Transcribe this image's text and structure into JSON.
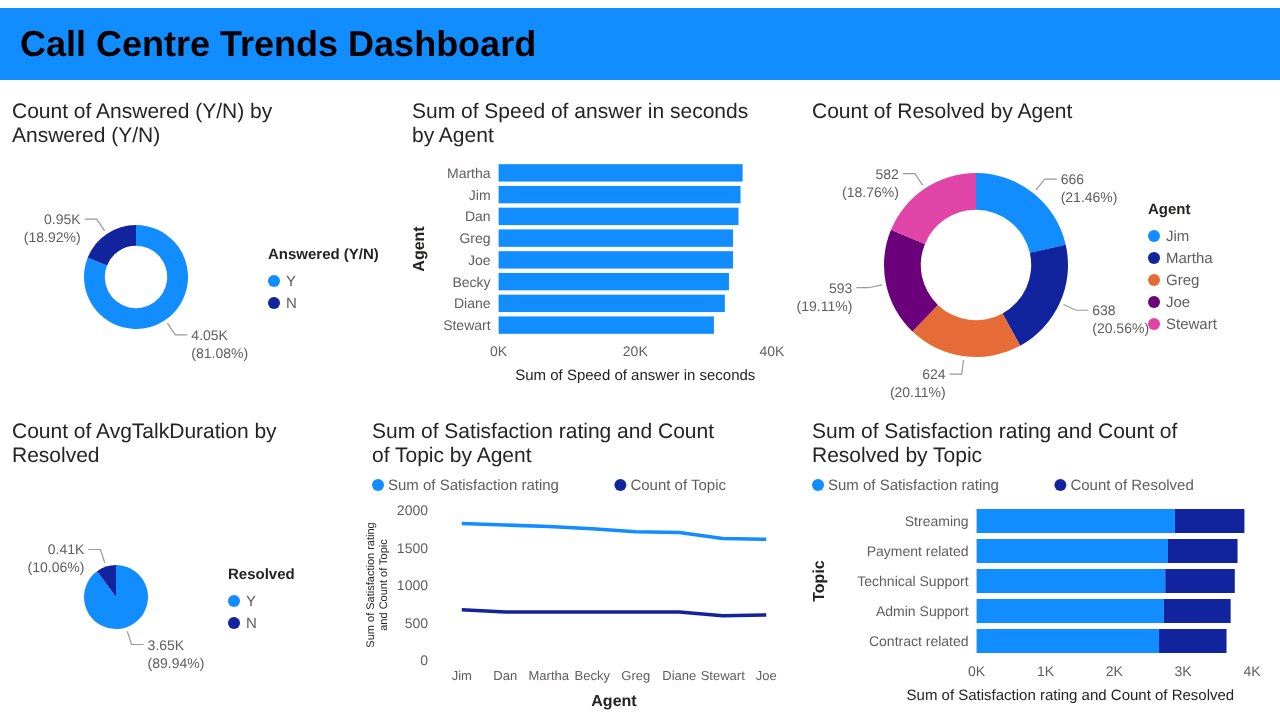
{
  "chart_data": [
    {
      "type": "other",
      "title": "Call Centre Trends Dashboard"
    },
    {
      "type": "donut",
      "title": "Count of Answered (Y/N) by Answered (Y/N)",
      "legend_title": "Answered (Y/N)",
      "legend": "right",
      "categories": [
        "Y",
        "N"
      ],
      "values": [
        4050,
        950
      ],
      "colors": [
        "#118dff",
        "#12239e"
      ],
      "value_labels": [
        "4.05K (81.08%)",
        "0.95K (18.92%)"
      ]
    },
    {
      "type": "bar",
      "orientation": "horizontal",
      "title": "Sum of Speed of answer in seconds by Agent",
      "xlabel": "Sum of Speed of answer in seconds",
      "ylabel": "Agent",
      "categories": [
        "Martha",
        "Jim",
        "Dan",
        "Greg",
        "Joe",
        "Becky",
        "Diane",
        "Stewart"
      ],
      "values": [
        35700,
        35400,
        35100,
        34300,
        34300,
        33700,
        33100,
        31500
      ],
      "color": "#118dff",
      "xlim": [
        0,
        40000
      ],
      "xticks": [
        {
          "value": 0,
          "label": "0K"
        },
        {
          "value": 20000,
          "label": "20K"
        },
        {
          "value": 40000,
          "label": "40K"
        }
      ]
    },
    {
      "type": "donut",
      "title": "Count of Resolved by Agent",
      "legend_title": "Agent",
      "legend": "right",
      "categories": [
        "Jim",
        "Martha",
        "Greg",
        "Joe",
        "Stewart"
      ],
      "values": [
        666,
        638,
        624,
        593,
        582
      ],
      "colors": [
        "#118dff",
        "#12239e",
        "#e66c37",
        "#6b007b",
        "#e044a7"
      ],
      "value_labels": [
        "666 (21.46%)",
        "638 (20.56%)",
        "624 (20.11%)",
        "593 (19.11%)",
        "582 (18.76%)"
      ]
    },
    {
      "type": "pie",
      "title": "Count of AvgTalkDuration by Resolved",
      "legend_title": "Resolved",
      "legend": "right",
      "categories": [
        "Y",
        "N"
      ],
      "values": [
        3650,
        410
      ],
      "colors": [
        "#118dff",
        "#12239e"
      ],
      "value_labels": [
        "3.65K (89.94%)",
        "0.41K (10.06%)"
      ]
    },
    {
      "type": "line",
      "title": "Sum of Satisfaction rating and Count of Topic by Agent",
      "xlabel": "Agent",
      "ylabel": "Sum of Satisfaction rating and Count of Topic",
      "legend": "top left",
      "categories": [
        "Jim",
        "Dan",
        "Martha",
        "Becky",
        "Greg",
        "Diane",
        "Stewart",
        "Joe"
      ],
      "ylim": [
        0,
        2000
      ],
      "yticks": [
        0,
        500,
        1000,
        1500,
        2000
      ],
      "series": [
        {
          "name": "Sum of Satisfaction rating",
          "color": "#118dff",
          "values": [
            1820,
            1800,
            1780,
            1750,
            1710,
            1700,
            1620,
            1610
          ]
        },
        {
          "name": "Count of Topic",
          "color": "#12239e",
          "values": [
            670,
            640,
            640,
            640,
            640,
            640,
            590,
            600
          ]
        }
      ]
    },
    {
      "type": "bar",
      "orientation": "horizontal",
      "stacked": true,
      "title": "Sum of Satisfaction rating and Count of Resolved by Topic",
      "xlabel": "Sum of Satisfaction rating and Count of Resolved",
      "ylabel": "Topic",
      "legend": "top left",
      "categories": [
        "Streaming",
        "Payment related",
        "Technical Support",
        "Admin Support",
        "Contract related"
      ],
      "xlim": [
        0,
        4000
      ],
      "xticks": [
        {
          "value": 0,
          "label": "0K"
        },
        {
          "value": 1000,
          "label": "1K"
        },
        {
          "value": 2000,
          "label": "2K"
        },
        {
          "value": 3000,
          "label": "3K"
        },
        {
          "value": 4000,
          "label": "4K"
        }
      ],
      "series": [
        {
          "name": "Sum of Satisfaction rating",
          "color": "#118dff",
          "values": [
            2880,
            2780,
            2740,
            2720,
            2650
          ]
        },
        {
          "name": "Count of Resolved",
          "color": "#12239e",
          "values": [
            1010,
            1010,
            1010,
            970,
            980
          ]
        }
      ]
    }
  ]
}
